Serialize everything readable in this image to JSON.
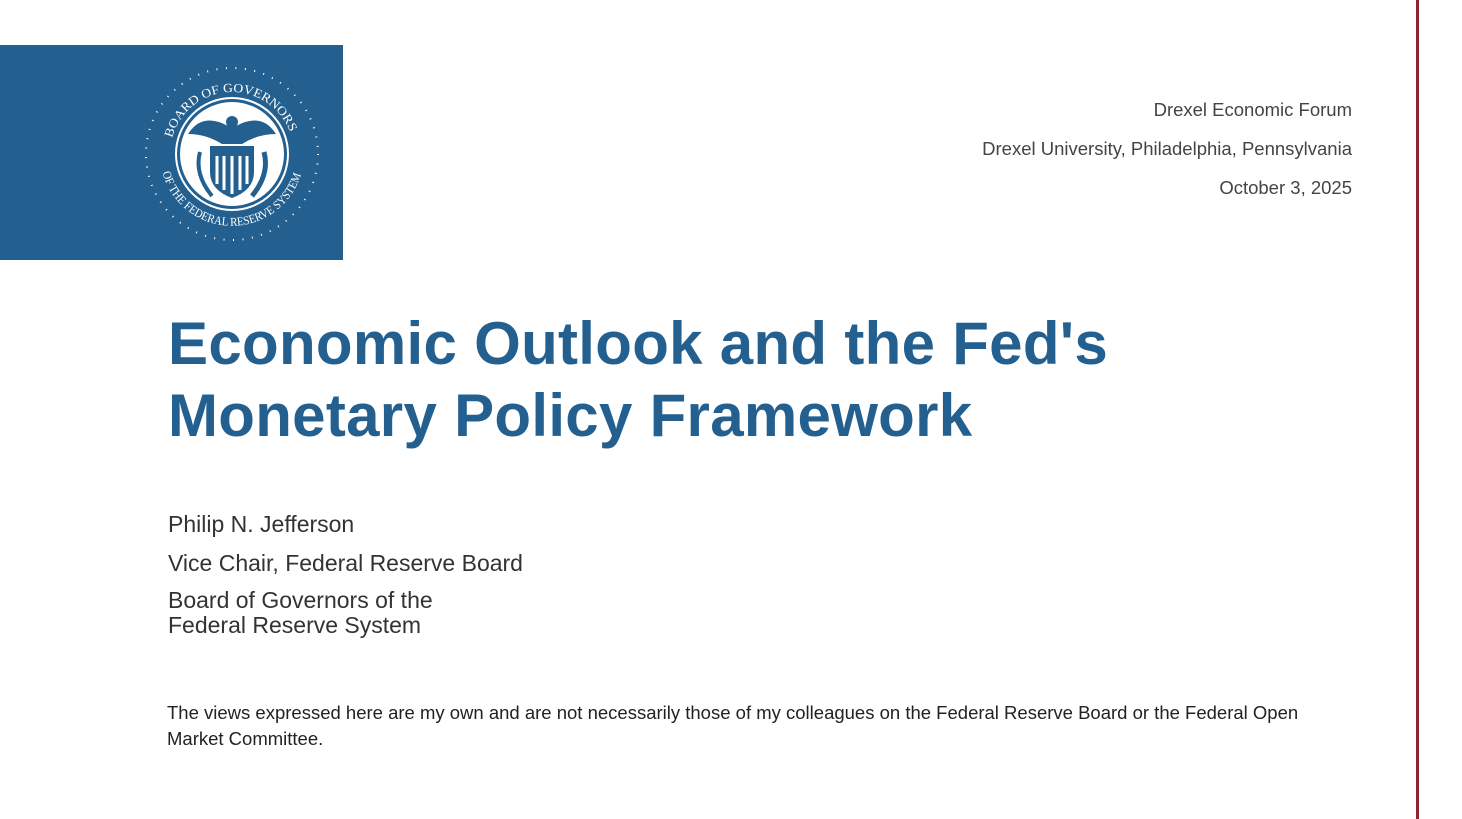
{
  "logo": {
    "seal_text_top": "BOARD OF GOVERNORS",
    "seal_text_bottom": "OF THE FEDERAL RESERVE SYSTEM",
    "background": "#24608f"
  },
  "event": {
    "name": "Drexel Economic Forum",
    "location": "Drexel University, Philadelphia, Pennsylvania",
    "date": "October 3, 2025"
  },
  "title": {
    "line1": "Economic Outlook and the Fed's",
    "line2": "Monetary Policy Framework",
    "color": "#24608f"
  },
  "speaker": {
    "name": "Philip N. Jefferson",
    "role": "Vice Chair, Federal Reserve Board",
    "org_line1": "Board of Governors of the",
    "org_line2": "Federal Reserve System"
  },
  "disclaimer": "The views expressed here are my own and are not necessarily those of my colleagues on the Federal Reserve Board or the Federal Open Market Committee.",
  "accent_line_color": "#8b2332"
}
